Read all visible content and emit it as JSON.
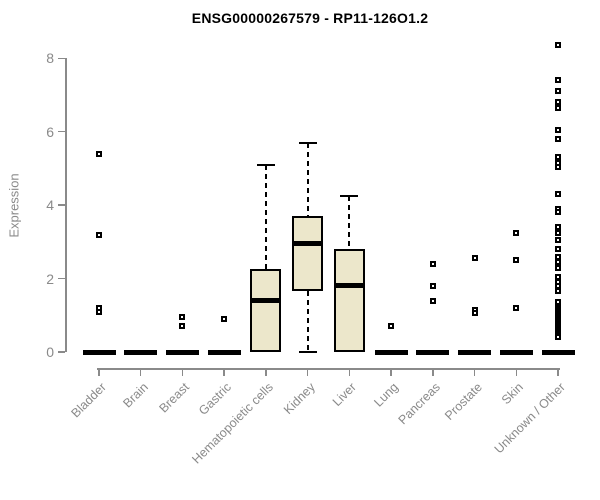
{
  "title": "ENSG00000267579 - RP11-126O1.2",
  "chart_data": {
    "type": "boxplot",
    "title": "ENSG00000267579 - RP11-126O1.2",
    "xlabel": "",
    "ylabel": "Expression",
    "ylim": [
      0,
      8
    ],
    "yticks": [
      0,
      2,
      4,
      6,
      8
    ],
    "grid": false,
    "legend": "none",
    "box_fill_color": "#ECE7CB",
    "box_stroke_color": "#000000",
    "axis_color": "#8a8a8a",
    "categories": [
      "Bladder",
      "Brain",
      "Breast",
      "Gastric",
      "Hematopoietic cells",
      "Kidney",
      "Liver",
      "Lung",
      "Pancreas",
      "Prostate",
      "Skin",
      "Unknown / Other"
    ],
    "series": [
      {
        "name": "Bladder",
        "q1": 0,
        "median": 0,
        "q3": 0,
        "whisker_low": 0,
        "whisker_high": 0,
        "outliers": [
          5.4,
          3.2,
          1.2,
          1.1
        ]
      },
      {
        "name": "Brain",
        "q1": 0,
        "median": 0,
        "q3": 0,
        "whisker_low": 0,
        "whisker_high": 0,
        "outliers": []
      },
      {
        "name": "Breast",
        "q1": 0,
        "median": 0,
        "q3": 0,
        "whisker_low": 0,
        "whisker_high": 0,
        "outliers": [
          0.95,
          0.7
        ]
      },
      {
        "name": "Gastric",
        "q1": 0,
        "median": 0,
        "q3": 0,
        "whisker_low": 0,
        "whisker_high": 0,
        "outliers": [
          0.9
        ]
      },
      {
        "name": "Hematopoietic cells",
        "q1": 0,
        "median": 1.4,
        "q3": 2.25,
        "whisker_low": 0,
        "whisker_high": 5.1,
        "outliers": []
      },
      {
        "name": "Kidney",
        "q1": 1.65,
        "median": 2.95,
        "q3": 3.7,
        "whisker_low": 0,
        "whisker_high": 5.7,
        "outliers": []
      },
      {
        "name": "Liver",
        "q1": 0,
        "median": 1.8,
        "q3": 2.8,
        "whisker_low": 0,
        "whisker_high": 4.25,
        "outliers": []
      },
      {
        "name": "Lung",
        "q1": 0,
        "median": 0,
        "q3": 0,
        "whisker_low": 0,
        "whisker_high": 0,
        "outliers": [
          0.7
        ]
      },
      {
        "name": "Pancreas",
        "q1": 0,
        "median": 0,
        "q3": 0,
        "whisker_low": 0,
        "whisker_high": 0,
        "outliers": [
          2.4,
          1.8,
          1.4
        ]
      },
      {
        "name": "Prostate",
        "q1": 0,
        "median": 0,
        "q3": 0,
        "whisker_low": 0,
        "whisker_high": 0,
        "outliers": [
          2.55,
          1.15,
          1.05
        ]
      },
      {
        "name": "Skin",
        "q1": 0,
        "median": 0,
        "q3": 0,
        "whisker_low": 0,
        "whisker_high": 0,
        "outliers": [
          3.25,
          2.5,
          1.2
        ]
      },
      {
        "name": "Unknown / Other",
        "q1": 0,
        "median": 0,
        "q3": 0,
        "whisker_low": 0,
        "whisker_high": 0,
        "outliers": [
          8.35,
          7.4,
          7.1,
          6.8,
          6.65,
          6.05,
          5.8,
          5.3,
          5.15,
          5.05,
          4.3,
          3.9,
          3.8,
          3.4,
          3.25,
          3.05,
          2.8,
          2.6,
          2.45,
          2.3,
          2.05,
          1.9,
          1.8,
          1.65,
          1.35,
          1.2,
          1.15,
          1.1,
          1.05,
          1.0,
          0.95,
          0.9,
          0.85,
          0.8,
          0.75,
          0.7,
          0.65,
          0.6,
          0.55,
          0.5,
          0.45,
          0.4
        ]
      }
    ]
  }
}
